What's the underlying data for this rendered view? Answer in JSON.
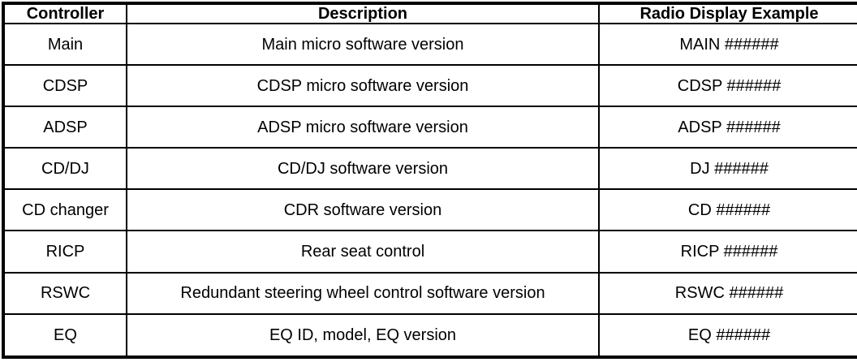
{
  "table": {
    "headers": {
      "controller": "Controller",
      "description": "Description",
      "display": "Radio Display Example"
    },
    "rows": [
      {
        "controller": "Main",
        "description": "Main micro software version",
        "display": "MAIN ######"
      },
      {
        "controller": "CDSP",
        "description": "CDSP micro software version",
        "display": "CDSP ######"
      },
      {
        "controller": "ADSP",
        "description": "ADSP micro software version",
        "display": "ADSP ######"
      },
      {
        "controller": "CD/DJ",
        "description": "CD/DJ software version",
        "display": "DJ ######"
      },
      {
        "controller": "CD changer",
        "description": "CDR software version",
        "display": "CD ######"
      },
      {
        "controller": "RICP",
        "description": "Rear seat control",
        "display": "RICP ######"
      },
      {
        "controller": "RSWC",
        "description": "Redundant steering wheel control software version",
        "display": "RSWC ######"
      },
      {
        "controller": "EQ",
        "description": "EQ ID, model, EQ version",
        "display": "EQ ######"
      }
    ],
    "colors": {
      "border": "#000000",
      "background": "#ffffff",
      "text": "#000000"
    }
  }
}
